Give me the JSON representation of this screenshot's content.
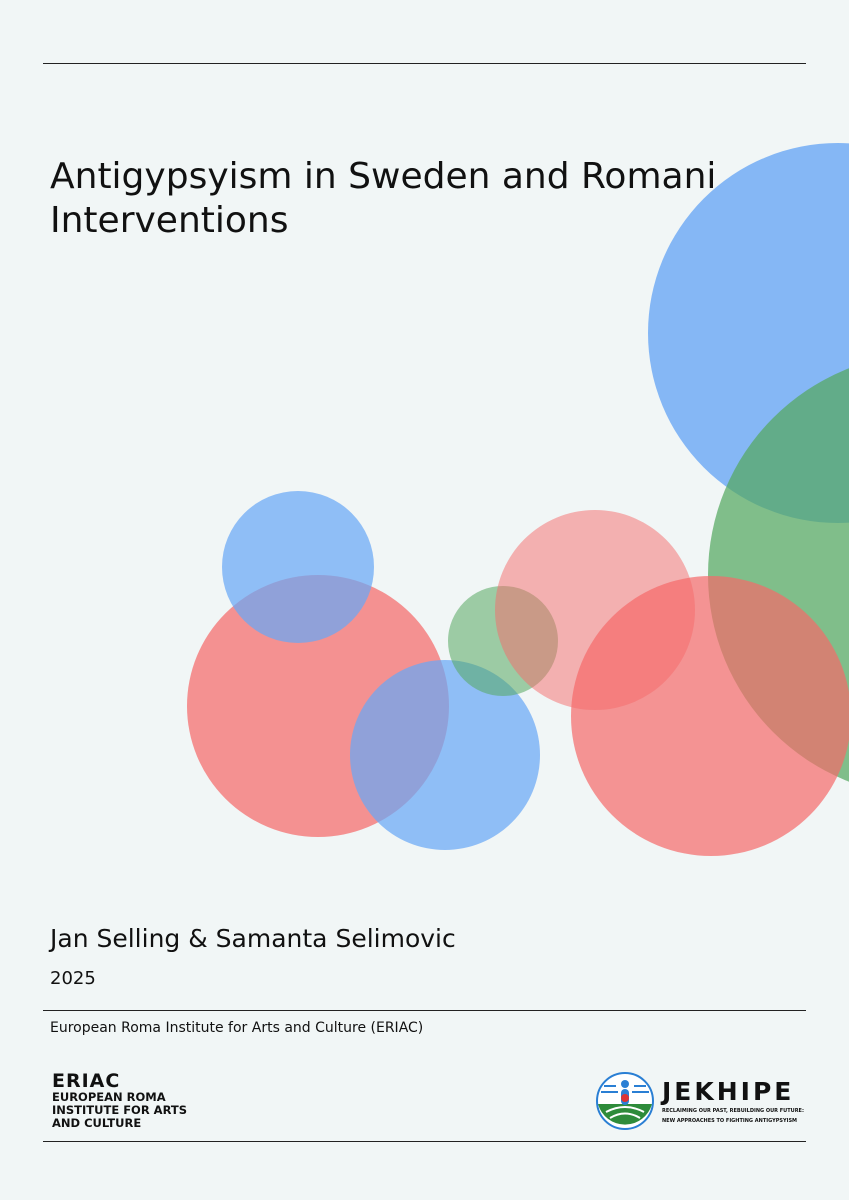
{
  "cover": {
    "title": "Antigypsyism in Sweden and Romani Interventions",
    "authors": "Jan Selling & Samanta Selimovic",
    "year": "2025",
    "publisher": "European Roma Institute for Arts and Culture (ERIAC)"
  },
  "logos": {
    "eriac": {
      "name": "ERIAC",
      "line1": "EUROPEAN ROMA",
      "line2": "INSTITUTE FOR ARTS",
      "line3": "AND CULTURE"
    },
    "jekhipe": {
      "name": "JEKHIPE",
      "tagline1": "RECLAIMING OUR PAST, REBUILDING OUR FUTURE:",
      "tagline2": "NEW APPROACHES TO FIGHTING ANTIGYPSYISM"
    }
  },
  "colors": {
    "background": "#f1f6f6",
    "blue": "#6aa8f5",
    "red": "#f56a6a",
    "green": "#55a860"
  }
}
